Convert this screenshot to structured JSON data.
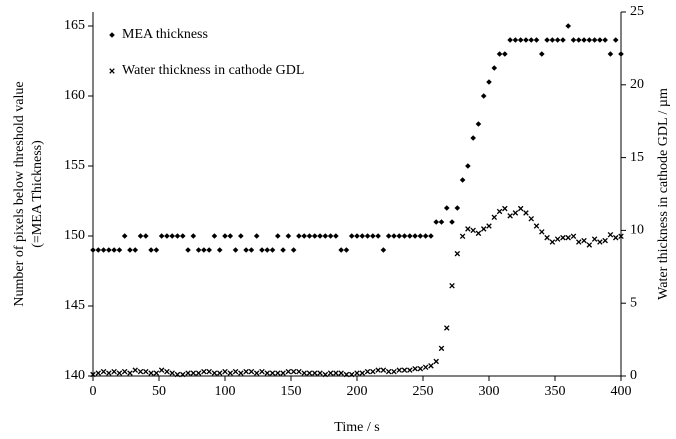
{
  "chart_data": {
    "type": "scatter",
    "xlabel": "Time / s",
    "ylabel": [
      "Number of pixels below threshold value",
      "(=MEA Thickness)"
    ],
    "y2label": "Water thickness in cathode GDL / µm",
    "legend": "top-left",
    "x": [
      0,
      4,
      8,
      12,
      16,
      20,
      24,
      28,
      32,
      36,
      40,
      44,
      48,
      52,
      56,
      60,
      64,
      68,
      72,
      76,
      80,
      84,
      88,
      92,
      96,
      100,
      104,
      108,
      112,
      116,
      120,
      124,
      128,
      132,
      136,
      140,
      144,
      148,
      152,
      156,
      160,
      164,
      168,
      172,
      176,
      180,
      184,
      188,
      192,
      196,
      200,
      204,
      208,
      212,
      216,
      220,
      224,
      228,
      232,
      236,
      240,
      244,
      248,
      252,
      256,
      260,
      264,
      268,
      272,
      276,
      280,
      284,
      288,
      292,
      296,
      300,
      304,
      308,
      312,
      316,
      320,
      324,
      328,
      332,
      336,
      340,
      344,
      348,
      352,
      356,
      360,
      364,
      368,
      372,
      376,
      380,
      384,
      388,
      392,
      396,
      400
    ],
    "series": [
      {
        "name": "MEA thickness",
        "color": "#000000",
        "marker": "diamond",
        "values": [
          149,
          149,
          149,
          149,
          149,
          149,
          150,
          149,
          149,
          150,
          150,
          149,
          149,
          150,
          150,
          150,
          150,
          150,
          149,
          150,
          149,
          149,
          149,
          150,
          149,
          150,
          150,
          149,
          150,
          149,
          149,
          150,
          149,
          149,
          149,
          150,
          149,
          150,
          149,
          150,
          150,
          150,
          150,
          150,
          150,
          150,
          150,
          149,
          149,
          150,
          150,
          150,
          150,
          150,
          150,
          149,
          150,
          150,
          150,
          150,
          150,
          150,
          150,
          150,
          150,
          151,
          151,
          152,
          151,
          152,
          154,
          155,
          157,
          158,
          160,
          161,
          162,
          163,
          163,
          164,
          164,
          164,
          164,
          164,
          164,
          163,
          164,
          164,
          164,
          164,
          165,
          164,
          164,
          164,
          164,
          164,
          164,
          164,
          163,
          164,
          163
        ]
      },
      {
        "name": "Water thickness in cathode GDL",
        "color": "#000000",
        "marker": "x",
        "axis": "y2",
        "values": [
          0.1,
          0.2,
          0.3,
          0.2,
          0.3,
          0.2,
          0.3,
          0.2,
          0.4,
          0.3,
          0.3,
          0.2,
          0.2,
          0.4,
          0.3,
          0.2,
          0.1,
          0.1,
          0.2,
          0.2,
          0.2,
          0.3,
          0.3,
          0.2,
          0.2,
          0.3,
          0.2,
          0.3,
          0.2,
          0.3,
          0.3,
          0.2,
          0.3,
          0.2,
          0.2,
          0.2,
          0.2,
          0.3,
          0.3,
          0.3,
          0.2,
          0.2,
          0.2,
          0.2,
          0.1,
          0.2,
          0.2,
          0.2,
          0.1,
          0.1,
          0.2,
          0.2,
          0.3,
          0.3,
          0.4,
          0.4,
          0.3,
          0.3,
          0.4,
          0.4,
          0.4,
          0.5,
          0.5,
          0.6,
          0.7,
          1.0,
          1.9,
          3.3,
          6.2,
          8.4,
          9.6,
          10.1,
          10.0,
          9.8,
          10.1,
          10.3,
          10.9,
          11.3,
          11.5,
          11.0,
          11.2,
          11.5,
          11.2,
          10.8,
          10.3,
          9.9,
          9.5,
          9.2,
          9.4,
          9.5,
          9.5,
          9.6,
          9.2,
          9.3,
          9.0,
          9.4,
          9.2,
          9.3,
          9.7,
          9.5,
          9.6
        ]
      }
    ],
    "xlim": [
      0,
      400
    ],
    "xticks": [
      0,
      50,
      100,
      150,
      200,
      250,
      300,
      350,
      400
    ],
    "ylim": [
      140,
      166
    ],
    "yticks": [
      140,
      145,
      150,
      155,
      160,
      165
    ],
    "y2lim": [
      0,
      25
    ],
    "y2ticks": [
      0,
      5,
      10,
      15,
      20,
      25
    ]
  }
}
